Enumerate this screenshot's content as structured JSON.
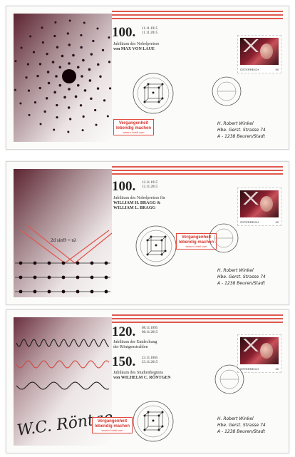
{
  "covers": [
    {
      "big_number": "100.",
      "dates": [
        "11.11.1915",
        "11.11.2015"
      ],
      "text_lines": [
        "Jubiläum des Nobelpreises",
        "von MAX VON LAUE"
      ],
      "box": [
        "Vergangenheit",
        "lebendig machen"
      ],
      "box_url": "www.v-bristl.com",
      "stamp": {
        "country": "ÖSTERREICH",
        "value": "90"
      },
      "address": [
        "H. Robert Winkel",
        "Hbe. Gerst. Strasse 74",
        "A - 1238 Beuren/Stadt"
      ]
    },
    {
      "big_number": "100.",
      "dates": [
        "12.11.1915",
        "12.11.2015"
      ],
      "text_lines": [
        "Jubiläum des Nobelpreises für",
        "WILLIAM H. BRAGG &",
        "WILLIAM L. BRAGG"
      ],
      "formula": "2d sinΘ = nλ",
      "box": [
        "Vergangenheit",
        "lebendig machen"
      ],
      "box_url": "www.v-bristl.com",
      "stamp": {
        "country": "ÖSTERREICH",
        "value": "90"
      },
      "address": [
        "H. Robert Winkel",
        "Hbe. Gerst. Strasse 74",
        "A - 1238 Beuren/Stadt"
      ]
    },
    {
      "big_number": "120.",
      "dates": [
        "08.11.1895",
        "08.11.2015"
      ],
      "text_lines": [
        "Jubiläum der Entdeckung",
        "der Röntgenstrahlen"
      ],
      "big_number_2": "150.",
      "dates_2": [
        "23.11.1865",
        "23.11.2015"
      ],
      "text_lines_2": [
        "Jubiläum des Studienbeginns",
        "von WILHELM C. RÖNTGEN"
      ],
      "signature": "W.C. Röntgen",
      "box": [
        "Vergangenheit",
        "lebendig machen"
      ],
      "box_url": "www.v-bristl.com",
      "stamp": {
        "country": "ÖSTERREICH",
        "value": "90"
      },
      "address": [
        "H. Robert Winkel",
        "Hbe. Gerst. Strasse 74",
        "A - 1238 Beuren/Stadt"
      ]
    }
  ]
}
